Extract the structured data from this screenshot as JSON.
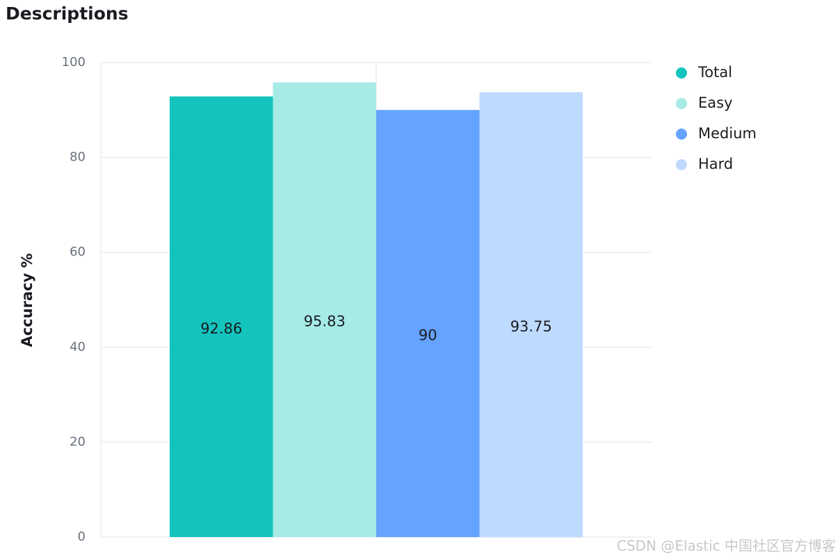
{
  "chart_data": {
    "type": "bar",
    "title": "Descriptions",
    "y_label": "Accuracy %",
    "categories": [
      null
    ],
    "series": [
      {
        "name": "Total",
        "color": "#13c4bd",
        "values": [
          92.86
        ]
      },
      {
        "name": "Easy",
        "color": "#a6ebe6",
        "values": [
          95.83
        ]
      },
      {
        "name": "Medium",
        "color": "#64a3ff",
        "values": [
          90
        ]
      },
      {
        "name": "Hard",
        "color": "#bfdaff",
        "values": [
          93.75
        ]
      }
    ],
    "ylim": [
      0,
      100
    ],
    "yticks": [
      0,
      20,
      40,
      60,
      80,
      100
    ],
    "grid": true,
    "legend": "right"
  },
  "watermark": "CSDN @Elastic 中国社区官方博客"
}
